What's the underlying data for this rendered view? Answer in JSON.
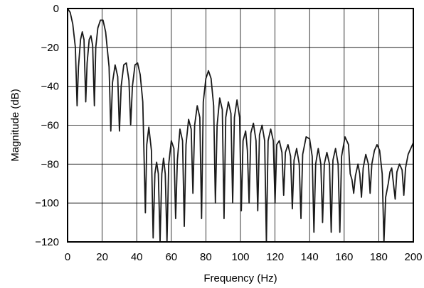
{
  "chart_data": {
    "type": "line",
    "title": "",
    "xlabel": "Frequency (Hz)",
    "ylabel": "Magnitude (dB)",
    "xlim": [
      0,
      200
    ],
    "ylim": [
      -120,
      0
    ],
    "x_ticks": [
      0,
      20,
      40,
      60,
      80,
      100,
      120,
      140,
      160,
      180,
      200
    ],
    "y_ticks": [
      0,
      -20,
      -40,
      -60,
      -80,
      -100,
      -120
    ],
    "x_tick_labels": [
      "0",
      "20",
      "40",
      "60",
      "80",
      "100",
      "120",
      "140",
      "160",
      "180",
      "200"
    ],
    "y_tick_labels": [
      "0",
      "−20",
      "−40",
      "−60",
      "−80",
      "−100",
      "−120"
    ],
    "grid": true,
    "legend": "none",
    "series": [
      {
        "color": "#1a1a1a",
        "points": [
          [
            0,
            0
          ],
          [
            1.5,
            -2
          ],
          [
            3,
            -8
          ],
          [
            4.5,
            -20
          ],
          [
            5.5,
            -50
          ],
          [
            6.3,
            -30
          ],
          [
            7.5,
            -16
          ],
          [
            8.5,
            -12
          ],
          [
            9.5,
            -16
          ],
          [
            10.5,
            -48
          ],
          [
            11.3,
            -28
          ],
          [
            12.5,
            -16
          ],
          [
            13.5,
            -14
          ],
          [
            14.5,
            -19
          ],
          [
            15.5,
            -50
          ],
          [
            16.3,
            -20
          ],
          [
            17.5,
            -10
          ],
          [
            19,
            -6
          ],
          [
            20.5,
            -6
          ],
          [
            22,
            -12
          ],
          [
            24,
            -30
          ],
          [
            25,
            -63
          ],
          [
            26,
            -38
          ],
          [
            27.5,
            -29
          ],
          [
            29,
            -35
          ],
          [
            30,
            -63
          ],
          [
            31,
            -40
          ],
          [
            32.5,
            -29
          ],
          [
            34,
            -28
          ],
          [
            35.5,
            -37
          ],
          [
            36.5,
            -60
          ],
          [
            37.5,
            -40
          ],
          [
            39,
            -29
          ],
          [
            40.5,
            -28
          ],
          [
            42,
            -34
          ],
          [
            43.5,
            -48
          ],
          [
            45,
            -105
          ],
          [
            45.8,
            -70
          ],
          [
            47,
            -61
          ],
          [
            48.5,
            -73
          ],
          [
            49.5,
            -118
          ],
          [
            50.5,
            -85
          ],
          [
            51.5,
            -79
          ],
          [
            52.5,
            -85
          ],
          [
            53.5,
            -120
          ],
          [
            54.5,
            -85
          ],
          [
            55.5,
            -77
          ],
          [
            56.5,
            -85
          ],
          [
            57.5,
            -120
          ],
          [
            58.5,
            -80
          ],
          [
            60,
            -68
          ],
          [
            61.5,
            -72
          ],
          [
            62.5,
            -108
          ],
          [
            63.5,
            -78
          ],
          [
            65,
            -62
          ],
          [
            66.5,
            -68
          ],
          [
            67.5,
            -112
          ],
          [
            68.5,
            -70
          ],
          [
            70,
            -57
          ],
          [
            71.5,
            -62
          ],
          [
            72.5,
            -95
          ],
          [
            73.5,
            -60
          ],
          [
            75,
            -50
          ],
          [
            76.5,
            -56
          ],
          [
            77.5,
            -108
          ],
          [
            78.5,
            -48
          ],
          [
            80,
            -36
          ],
          [
            81.5,
            -32
          ],
          [
            83,
            -36
          ],
          [
            84.5,
            -50
          ],
          [
            85.5,
            -100
          ],
          [
            86.5,
            -60
          ],
          [
            88,
            -46
          ],
          [
            89.5,
            -52
          ],
          [
            90.5,
            -108
          ],
          [
            91.5,
            -56
          ],
          [
            93,
            -48
          ],
          [
            94.5,
            -54
          ],
          [
            95.5,
            -100
          ],
          [
            96.5,
            -56
          ],
          [
            98,
            -47
          ],
          [
            99.5,
            -56
          ],
          [
            100.5,
            -104
          ],
          [
            101.5,
            -68
          ],
          [
            103,
            -63
          ],
          [
            104,
            -73
          ],
          [
            105,
            -100
          ],
          [
            106,
            -64
          ],
          [
            107.5,
            -59
          ],
          [
            109,
            -68
          ],
          [
            110,
            -104
          ],
          [
            111,
            -65
          ],
          [
            112.5,
            -60
          ],
          [
            114,
            -68
          ],
          [
            115,
            -120
          ],
          [
            116,
            -68
          ],
          [
            117.5,
            -62
          ],
          [
            119,
            -68
          ],
          [
            120,
            -100
          ],
          [
            121,
            -70
          ],
          [
            122.5,
            -68
          ],
          [
            124,
            -74
          ],
          [
            125,
            -96
          ],
          [
            126,
            -74
          ],
          [
            127.5,
            -70
          ],
          [
            129,
            -76
          ],
          [
            130,
            -103
          ],
          [
            131,
            -78
          ],
          [
            132.5,
            -72
          ],
          [
            134,
            -80
          ],
          [
            135,
            -108
          ],
          [
            136,
            -75
          ],
          [
            138,
            -66
          ],
          [
            140,
            -67
          ],
          [
            141.5,
            -76
          ],
          [
            142.5,
            -115
          ],
          [
            143.5,
            -80
          ],
          [
            145,
            -72
          ],
          [
            146.5,
            -80
          ],
          [
            147.5,
            -110
          ],
          [
            148.5,
            -80
          ],
          [
            150,
            -74
          ],
          [
            151.5,
            -80
          ],
          [
            152.5,
            -115
          ],
          [
            153.5,
            -78
          ],
          [
            155,
            -72
          ],
          [
            156.5,
            -80
          ],
          [
            157.5,
            -115
          ],
          [
            158.5,
            -76
          ],
          [
            160.5,
            -66
          ],
          [
            162.5,
            -70
          ],
          [
            163.5,
            -85
          ],
          [
            164.5,
            -88
          ],
          [
            165.5,
            -95
          ],
          [
            166.5,
            -86
          ],
          [
            168,
            -80
          ],
          [
            169,
            -85
          ],
          [
            170,
            -97
          ],
          [
            171,
            -82
          ],
          [
            172.5,
            -75
          ],
          [
            174,
            -80
          ],
          [
            175,
            -95
          ],
          [
            176,
            -80
          ],
          [
            177.5,
            -73
          ],
          [
            179,
            -70
          ],
          [
            180.5,
            -73
          ],
          [
            182,
            -85
          ],
          [
            183,
            -120
          ],
          [
            184,
            -97
          ],
          [
            185.5,
            -90
          ],
          [
            186.5,
            -84
          ],
          [
            187.5,
            -82
          ],
          [
            188.5,
            -90
          ],
          [
            189.5,
            -98
          ],
          [
            190.5,
            -84
          ],
          [
            192,
            -80
          ],
          [
            193.5,
            -83
          ],
          [
            194.5,
            -96
          ],
          [
            195.5,
            -82
          ],
          [
            197,
            -75
          ],
          [
            198.5,
            -72
          ],
          [
            200,
            -69
          ]
        ]
      }
    ]
  }
}
